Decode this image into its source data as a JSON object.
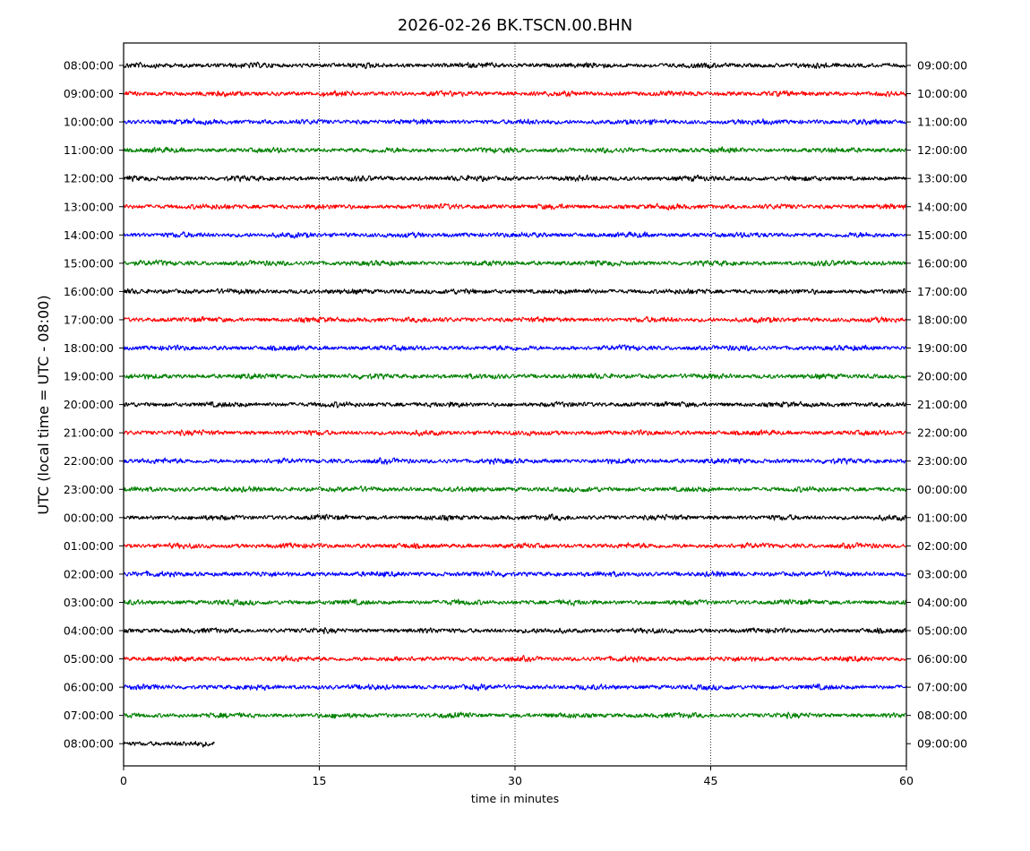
{
  "chart_data": {
    "type": "line",
    "title": "2026-02-26 BK.TSCN.00.BHN",
    "xlabel": "time in minutes",
    "ylabel": "UTC (local time = UTC - 08:00)",
    "xlim": [
      0,
      60
    ],
    "x_ticks": [
      0,
      15,
      30,
      45,
      60
    ],
    "vertical_gridlines_at": [
      15,
      30,
      45
    ],
    "grid": "vertical dotted lines only",
    "colors_cycle": [
      "#000000",
      "#ff0000",
      "#0000ff",
      "#008000"
    ],
    "rows": [
      {
        "left_label": "08:00:00",
        "right_label": "09:00:00",
        "color": "#000000",
        "duration_min": 60
      },
      {
        "left_label": "09:00:00",
        "right_label": "10:00:00",
        "color": "#ff0000",
        "duration_min": 60
      },
      {
        "left_label": "10:00:00",
        "right_label": "11:00:00",
        "color": "#0000ff",
        "duration_min": 60
      },
      {
        "left_label": "11:00:00",
        "right_label": "12:00:00",
        "color": "#008000",
        "duration_min": 60
      },
      {
        "left_label": "12:00:00",
        "right_label": "13:00:00",
        "color": "#000000",
        "duration_min": 60
      },
      {
        "left_label": "13:00:00",
        "right_label": "14:00:00",
        "color": "#ff0000",
        "duration_min": 60
      },
      {
        "left_label": "14:00:00",
        "right_label": "15:00:00",
        "color": "#0000ff",
        "duration_min": 60
      },
      {
        "left_label": "15:00:00",
        "right_label": "16:00:00",
        "color": "#008000",
        "duration_min": 60
      },
      {
        "left_label": "16:00:00",
        "right_label": "17:00:00",
        "color": "#000000",
        "duration_min": 60
      },
      {
        "left_label": "17:00:00",
        "right_label": "18:00:00",
        "color": "#ff0000",
        "duration_min": 60
      },
      {
        "left_label": "18:00:00",
        "right_label": "19:00:00",
        "color": "#0000ff",
        "duration_min": 60
      },
      {
        "left_label": "19:00:00",
        "right_label": "20:00:00",
        "color": "#008000",
        "duration_min": 60
      },
      {
        "left_label": "20:00:00",
        "right_label": "21:00:00",
        "color": "#000000",
        "duration_min": 60
      },
      {
        "left_label": "21:00:00",
        "right_label": "22:00:00",
        "color": "#ff0000",
        "duration_min": 60
      },
      {
        "left_label": "22:00:00",
        "right_label": "23:00:00",
        "color": "#0000ff",
        "duration_min": 60
      },
      {
        "left_label": "23:00:00",
        "right_label": "00:00:00",
        "color": "#008000",
        "duration_min": 60
      },
      {
        "left_label": "00:00:00",
        "right_label": "01:00:00",
        "color": "#000000",
        "duration_min": 60
      },
      {
        "left_label": "01:00:00",
        "right_label": "02:00:00",
        "color": "#ff0000",
        "duration_min": 60
      },
      {
        "left_label": "02:00:00",
        "right_label": "03:00:00",
        "color": "#0000ff",
        "duration_min": 60
      },
      {
        "left_label": "03:00:00",
        "right_label": "04:00:00",
        "color": "#008000",
        "duration_min": 60
      },
      {
        "left_label": "04:00:00",
        "right_label": "05:00:00",
        "color": "#000000",
        "duration_min": 60
      },
      {
        "left_label": "05:00:00",
        "right_label": "06:00:00",
        "color": "#ff0000",
        "duration_min": 60
      },
      {
        "left_label": "06:00:00",
        "right_label": "07:00:00",
        "color": "#0000ff",
        "duration_min": 60
      },
      {
        "left_label": "07:00:00",
        "right_label": "08:00:00",
        "color": "#008000",
        "duration_min": 60
      },
      {
        "left_label": "08:00:00",
        "right_label": "09:00:00",
        "color": "#000000",
        "duration_min": 7
      }
    ]
  }
}
